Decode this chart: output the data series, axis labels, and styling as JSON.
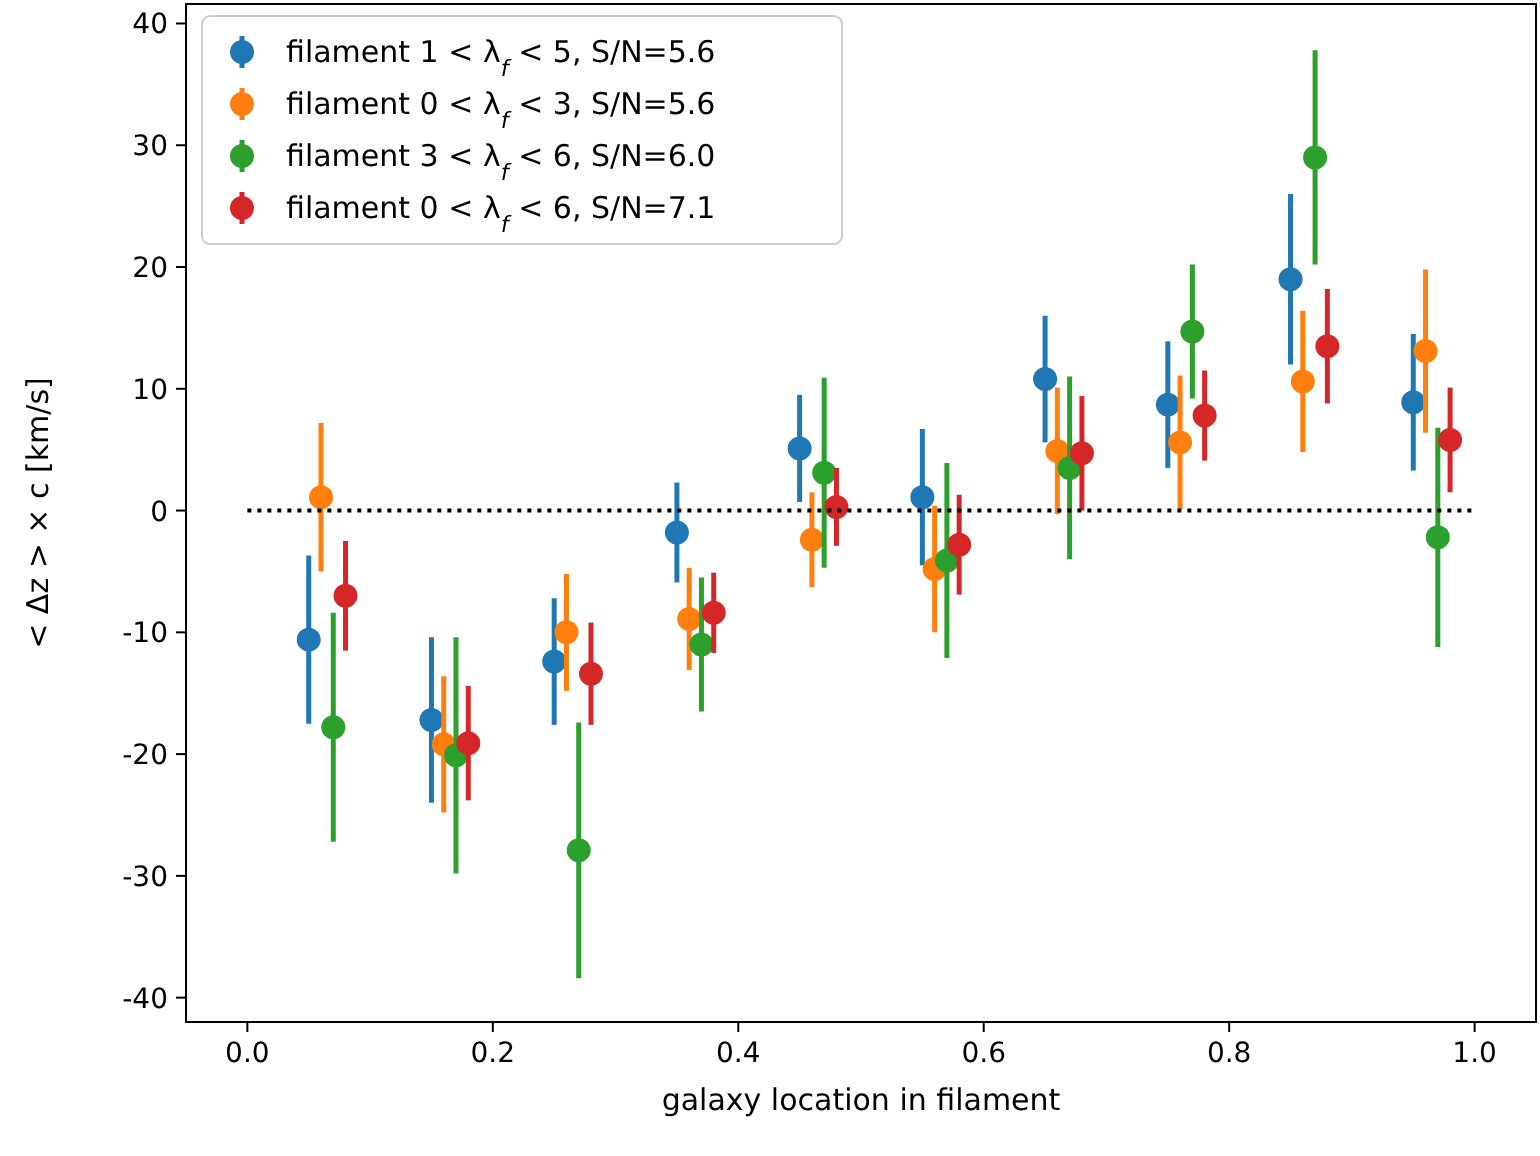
{
  "chart_data": {
    "type": "scatter",
    "xlabel": "galaxy location in filament",
    "ylabel": "< Δz > × c [km/s]",
    "xlim": [
      -0.05,
      1.05
    ],
    "ylim": [
      -42,
      41.6
    ],
    "xticks": [
      {
        "value": 0,
        "label": "0.0"
      },
      {
        "value": 0.2,
        "label": "0.2"
      },
      {
        "value": 0.4,
        "label": "0.4"
      },
      {
        "value": 0.6,
        "label": "0.6"
      },
      {
        "value": 0.8,
        "label": "0.8"
      },
      {
        "value": 1,
        "label": "1.0"
      }
    ],
    "yticks": [
      -40,
      -30,
      -20,
      -10,
      0,
      10,
      20,
      30,
      40
    ],
    "grid": false,
    "legend": "top left",
    "marker": "circle",
    "series": [
      {
        "name": "filament 1 < λ$_{f}$ < 5, S/N=5.6",
        "color": "#1f77b4",
        "x": [
          0.05,
          0.15,
          0.25,
          0.35,
          0.45,
          0.55,
          0.65,
          0.75,
          0.85,
          0.95
        ],
        "values": [
          -10.6,
          -17.2,
          -12.4,
          -1.8,
          5.1,
          1.1,
          10.8,
          8.7,
          19.0,
          8.9
        ],
        "errors": [
          6.9,
          6.8,
          5.2,
          4.1,
          4.4,
          5.6,
          5.2,
          5.2,
          7.0,
          5.6
        ]
      },
      {
        "name": "filament 0 < λ$_{f}$ < 3, S/N=5.6",
        "color": "#ff7f0e",
        "x": [
          0.06,
          0.16,
          0.26,
          0.36,
          0.46,
          0.56,
          0.66,
          0.76,
          0.86,
          0.96
        ],
        "values": [
          1.1,
          -19.2,
          -10.0,
          -8.9,
          -2.4,
          -4.8,
          4.9,
          5.6,
          10.6,
          13.1
        ],
        "errors": [
          6.1,
          5.6,
          4.8,
          4.2,
          3.9,
          5.2,
          5.2,
          5.5,
          5.8,
          6.7
        ]
      },
      {
        "name": "filament 3 < λ$_{f}$ < 6, S/N=6.0",
        "color": "#2ca02c",
        "x": [
          0.07,
          0.17,
          0.27,
          0.37,
          0.47,
          0.57,
          0.67,
          0.77,
          0.87,
          0.97
        ],
        "values": [
          -17.8,
          -20.1,
          -27.9,
          -11.0,
          3.1,
          -4.1,
          3.5,
          14.7,
          29.0,
          -2.2
        ],
        "errors": [
          9.4,
          9.7,
          10.5,
          5.5,
          7.8,
          8.0,
          7.5,
          5.5,
          8.8,
          9.0
        ]
      },
      {
        "name": "filament 0 < λ$_{f}$ < 6, S/N=7.1",
        "color": "#d62728",
        "x": [
          0.08,
          0.18,
          0.28,
          0.38,
          0.48,
          0.58,
          0.68,
          0.78,
          0.88,
          0.98
        ],
        "values": [
          -7.0,
          -19.1,
          -13.4,
          -8.4,
          0.3,
          -2.8,
          4.7,
          7.8,
          13.5,
          5.8
        ],
        "errors": [
          4.5,
          4.7,
          4.2,
          3.3,
          3.2,
          4.1,
          4.7,
          3.7,
          4.7,
          4.3
        ]
      },
      {
        "type": "line",
        "color": "#000000",
        "line_style": "dotted",
        "marker": "none",
        "x": [
          0,
          1
        ],
        "values": [
          0,
          0
        ]
      }
    ]
  }
}
